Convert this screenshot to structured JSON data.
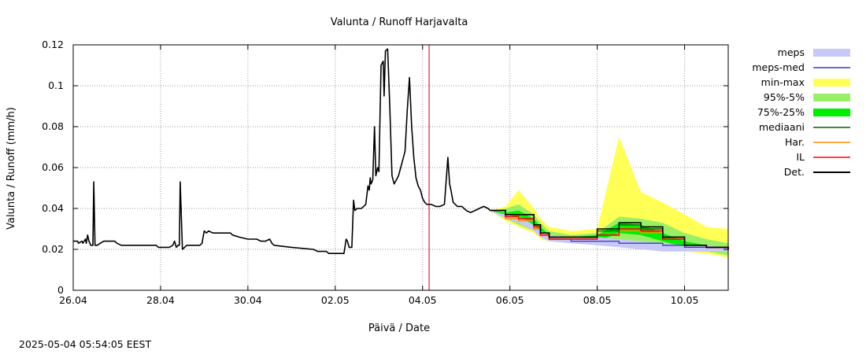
{
  "chart_data": {
    "type": "line",
    "title": "Valunta / Runoff  Harjavalta",
    "xlabel": "Päivä / Date",
    "ylabel": "Valunta / Runoff (mm/h)",
    "xlim": [
      0,
      15
    ],
    "ylim": [
      0,
      0.12
    ],
    "x_unit": "days since 26.04",
    "x_ticks": [
      {
        "x": 0,
        "label": "26.04"
      },
      {
        "x": 2,
        "label": "28.04"
      },
      {
        "x": 4,
        "label": "30.04"
      },
      {
        "x": 6,
        "label": "02.05"
      },
      {
        "x": 8,
        "label": "04.05"
      },
      {
        "x": 10,
        "label": "06.05"
      },
      {
        "x": 12,
        "label": "08.05"
      },
      {
        "x": 14,
        "label": "10.05"
      }
    ],
    "y_ticks": [
      {
        "y": 0,
        "label": "0"
      },
      {
        "y": 0.02,
        "label": "0.02"
      },
      {
        "y": 0.04,
        "label": "0.04"
      },
      {
        "y": 0.06,
        "label": "0.06"
      },
      {
        "y": 0.08,
        "label": "0.08"
      },
      {
        "y": 0.1,
        "label": "0.1"
      },
      {
        "y": 0.12,
        "label": "0.12"
      }
    ],
    "grid": true,
    "forecast_start_x": 8.15,
    "legend": [
      {
        "key": "meps",
        "label": "meps",
        "color": "#c8c8f8",
        "kind": "band"
      },
      {
        "key": "meps_med",
        "label": "meps-med",
        "color": "#3a3ab8",
        "kind": "line"
      },
      {
        "key": "minmax",
        "label": "min-max",
        "color": "#ffff55",
        "kind": "band"
      },
      {
        "key": "p95_5",
        "label": "95%-5%",
        "color": "#99f066",
        "kind": "band"
      },
      {
        "key": "p75_25",
        "label": "75%-25%",
        "color": "#00ee00",
        "kind": "band"
      },
      {
        "key": "median",
        "label": "mediaani",
        "color": "#006400",
        "kind": "line"
      },
      {
        "key": "har",
        "label": "Har.",
        "color": "#ff8c00",
        "kind": "line"
      },
      {
        "key": "il",
        "label": "IL",
        "color": "#ff0000",
        "kind": "line"
      },
      {
        "key": "det",
        "label": "Det.",
        "color": "#000000",
        "kind": "line"
      }
    ],
    "series": {
      "det_history": [
        [
          0,
          0.024
        ],
        [
          0.1,
          0.024
        ],
        [
          0.12,
          0.023
        ],
        [
          0.2,
          0.024
        ],
        [
          0.22,
          0.023
        ],
        [
          0.28,
          0.025
        ],
        [
          0.3,
          0.023
        ],
        [
          0.33,
          0.027
        ],
        [
          0.36,
          0.024
        ],
        [
          0.4,
          0.022
        ],
        [
          0.45,
          0.022
        ],
        [
          0.47,
          0.053
        ],
        [
          0.5,
          0.022
        ],
        [
          0.55,
          0.022
        ],
        [
          0.62,
          0.023
        ],
        [
          0.7,
          0.024
        ],
        [
          0.95,
          0.024
        ],
        [
          1.0,
          0.023
        ],
        [
          1.1,
          0.022
        ],
        [
          1.9,
          0.022
        ],
        [
          1.95,
          0.021
        ],
        [
          2.2,
          0.021
        ],
        [
          2.28,
          0.022
        ],
        [
          2.32,
          0.024
        ],
        [
          2.36,
          0.021
        ],
        [
          2.4,
          0.022
        ],
        [
          2.43,
          0.022
        ],
        [
          2.45,
          0.053
        ],
        [
          2.5,
          0.02
        ],
        [
          2.55,
          0.021
        ],
        [
          2.6,
          0.022
        ],
        [
          2.7,
          0.022
        ],
        [
          2.9,
          0.022
        ],
        [
          2.95,
          0.023
        ],
        [
          3.0,
          0.029
        ],
        [
          3.05,
          0.028
        ],
        [
          3.1,
          0.029
        ],
        [
          3.2,
          0.028
        ],
        [
          3.6,
          0.028
        ],
        [
          3.65,
          0.027
        ],
        [
          3.8,
          0.026
        ],
        [
          4.0,
          0.025
        ],
        [
          4.2,
          0.025
        ],
        [
          4.3,
          0.024
        ],
        [
          4.4,
          0.024
        ],
        [
          4.5,
          0.025
        ],
        [
          4.55,
          0.023
        ],
        [
          4.6,
          0.022
        ],
        [
          5.0,
          0.021
        ],
        [
          5.5,
          0.02
        ],
        [
          5.6,
          0.019
        ],
        [
          5.8,
          0.019
        ],
        [
          5.85,
          0.018
        ],
        [
          6.1,
          0.018
        ],
        [
          6.2,
          0.018
        ],
        [
          6.25,
          0.025
        ],
        [
          6.28,
          0.024
        ],
        [
          6.32,
          0.021
        ],
        [
          6.38,
          0.021
        ],
        [
          6.42,
          0.044
        ],
        [
          6.45,
          0.039
        ],
        [
          6.5,
          0.04
        ],
        [
          6.55,
          0.04
        ],
        [
          6.6,
          0.04
        ],
        [
          6.65,
          0.041
        ],
        [
          6.7,
          0.042
        ],
        [
          6.75,
          0.051
        ],
        [
          6.78,
          0.049
        ],
        [
          6.8,
          0.055
        ],
        [
          6.82,
          0.052
        ],
        [
          6.86,
          0.054
        ],
        [
          6.9,
          0.08
        ],
        [
          6.93,
          0.056
        ],
        [
          6.97,
          0.06
        ],
        [
          7.0,
          0.058
        ],
        [
          7.05,
          0.11
        ],
        [
          7.1,
          0.112
        ],
        [
          7.12,
          0.095
        ],
        [
          7.15,
          0.117
        ],
        [
          7.2,
          0.118
        ],
        [
          7.25,
          0.09
        ],
        [
          7.3,
          0.056
        ],
        [
          7.35,
          0.052
        ],
        [
          7.4,
          0.054
        ],
        [
          7.45,
          0.056
        ],
        [
          7.5,
          0.06
        ],
        [
          7.55,
          0.064
        ],
        [
          7.6,
          0.068
        ],
        [
          7.65,
          0.088
        ],
        [
          7.7,
          0.104
        ],
        [
          7.75,
          0.08
        ],
        [
          7.8,
          0.065
        ],
        [
          7.85,
          0.055
        ],
        [
          7.9,
          0.051
        ],
        [
          7.95,
          0.049
        ],
        [
          8.0,
          0.045
        ],
        [
          8.05,
          0.043
        ],
        [
          8.1,
          0.042
        ],
        [
          8.2,
          0.042
        ],
        [
          8.3,
          0.041
        ],
        [
          8.4,
          0.041
        ],
        [
          8.5,
          0.042
        ],
        [
          8.55,
          0.056
        ],
        [
          8.58,
          0.065
        ],
        [
          8.62,
          0.052
        ],
        [
          8.65,
          0.049
        ],
        [
          8.7,
          0.043
        ],
        [
          8.75,
          0.042
        ],
        [
          8.8,
          0.041
        ],
        [
          8.9,
          0.041
        ],
        [
          9.0,
          0.039
        ],
        [
          9.1,
          0.038
        ],
        [
          9.2,
          0.039
        ],
        [
          9.3,
          0.04
        ],
        [
          9.4,
          0.041
        ],
        [
          9.5,
          0.04
        ],
        [
          9.55,
          0.039
        ]
      ],
      "fc_x": [
        9.55,
        9.9,
        10.2,
        10.55,
        10.7,
        10.9,
        11.4,
        12.0,
        12.5,
        13.0,
        13.5,
        14.0,
        14.5,
        15.0
      ],
      "det_fc": [
        0.039,
        0.037,
        0.037,
        0.032,
        0.028,
        0.026,
        0.026,
        0.03,
        0.033,
        0.031,
        0.026,
        0.022,
        0.021,
        0.02
      ],
      "median_fc": [
        0.039,
        0.037,
        0.037,
        0.032,
        0.028,
        0.026,
        0.026,
        0.029,
        0.032,
        0.03,
        0.026,
        0.022,
        0.021,
        0.02
      ],
      "il_fc": [
        0.039,
        0.036,
        0.035,
        0.031,
        0.027,
        0.025,
        0.025,
        0.027,
        0.03,
        0.029,
        0.025,
        0.022,
        0.021,
        0.02
      ],
      "har_fc": [
        0.039,
        0.035,
        0.034,
        0.03,
        0.027,
        0.025,
        0.025,
        0.027,
        0.029,
        0.028,
        0.025,
        0.022,
        0.021,
        0.019
      ],
      "meps_med_fc": [
        0.039,
        0.036,
        0.035,
        0.03,
        0.027,
        0.025,
        0.024,
        0.024,
        0.023,
        0.023,
        0.022,
        0.021,
        0.021,
        0.02
      ],
      "meps_hi": [
        0.039,
        0.037,
        0.036,
        0.032,
        0.029,
        0.027,
        0.026,
        0.026,
        0.025,
        0.024,
        0.023,
        0.022,
        0.022,
        0.021
      ],
      "meps_lo": [
        0.039,
        0.035,
        0.033,
        0.029,
        0.026,
        0.024,
        0.023,
        0.022,
        0.021,
        0.02,
        0.019,
        0.019,
        0.019,
        0.019
      ],
      "minmax_hi": [
        0.039,
        0.041,
        0.049,
        0.04,
        0.035,
        0.031,
        0.029,
        0.03,
        0.075,
        0.048,
        0.043,
        0.037,
        0.031,
        0.03
      ],
      "minmax_lo": [
        0.039,
        0.034,
        0.031,
        0.028,
        0.025,
        0.024,
        0.023,
        0.023,
        0.024,
        0.023,
        0.021,
        0.019,
        0.018,
        0.016
      ],
      "p95_hi": [
        0.039,
        0.04,
        0.042,
        0.037,
        0.033,
        0.029,
        0.027,
        0.028,
        0.036,
        0.035,
        0.033,
        0.028,
        0.025,
        0.023
      ],
      "p95_lo": [
        0.039,
        0.035,
        0.032,
        0.029,
        0.026,
        0.024,
        0.023,
        0.023,
        0.025,
        0.024,
        0.022,
        0.02,
        0.019,
        0.017
      ],
      "p75_hi": [
        0.039,
        0.038,
        0.039,
        0.035,
        0.031,
        0.027,
        0.026,
        0.027,
        0.033,
        0.032,
        0.028,
        0.024,
        0.022,
        0.021
      ],
      "p75_lo": [
        0.039,
        0.036,
        0.034,
        0.03,
        0.027,
        0.025,
        0.024,
        0.024,
        0.028,
        0.027,
        0.024,
        0.021,
        0.02,
        0.019
      ]
    }
  },
  "timestamp": "2025-05-04  05:54:05 EEST"
}
